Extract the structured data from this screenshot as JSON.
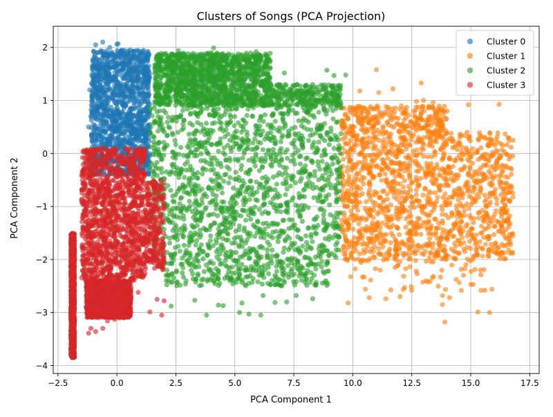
{
  "chart_data": {
    "type": "scatter",
    "title": "Clusters of Songs (PCA Projection)",
    "xlabel": "PCA Component 1",
    "ylabel": "PCA Component 2",
    "xlim": [
      -2.7,
      17.9
    ],
    "ylim": [
      -4.15,
      2.4
    ],
    "xticks": [
      -2.5,
      0.0,
      2.5,
      5.0,
      7.5,
      10.0,
      12.5,
      15.0,
      17.5
    ],
    "xtick_labels": [
      "−2.5",
      "0.0",
      "2.5",
      "5.0",
      "7.5",
      "10.0",
      "12.5",
      "15.0",
      "17.5"
    ],
    "yticks": [
      -4,
      -3,
      -2,
      -1,
      0,
      1,
      2
    ],
    "ytick_labels": [
      "−4",
      "−3",
      "−2",
      "−1",
      "0",
      "1",
      "2"
    ],
    "grid": true,
    "legend_position": "top-right",
    "series": [
      {
        "name": "Cluster 0",
        "color": "#1f77b4",
        "regions": [
          {
            "x": [
              -1.1,
              1.4
            ],
            "y": [
              -0.4,
              1.95
            ],
            "density": "dense"
          }
        ],
        "points": [
          [
            -0.6,
            2.1
          ],
          [
            -0.9,
            2.05
          ],
          [
            0.0,
            2.06
          ],
          [
            0.05,
            2.07
          ],
          [
            -0.3,
            2.0
          ],
          [
            0.3,
            1.95
          ],
          [
            0.7,
            1.93
          ],
          [
            1.1,
            1.92
          ],
          [
            1.3,
            1.9
          ],
          [
            -1.15,
            1.2
          ],
          [
            -1.2,
            0.5
          ],
          [
            -1.25,
            0.0
          ],
          [
            1.3,
            1.6
          ]
        ]
      },
      {
        "name": "Cluster 1",
        "color": "#ff7f0e",
        "regions": [
          {
            "x": [
              9.5,
              16.8
            ],
            "y": [
              -2.0,
              0.4
            ],
            "density": "dense"
          },
          {
            "x": [
              9.5,
              14.0
            ],
            "y": [
              0.4,
              0.9
            ],
            "density": "medium"
          },
          {
            "x": [
              9.6,
              16.0
            ],
            "y": [
              -2.6,
              -2.0
            ],
            "density": "sparse"
          }
        ],
        "points": [
          [
            11.0,
            1.58
          ],
          [
            12.9,
            1.33
          ],
          [
            11.7,
            1.22
          ],
          [
            10.3,
            1.18
          ],
          [
            11.1,
            1.15
          ],
          [
            13.0,
            1.0
          ],
          [
            12.7,
            0.98
          ],
          [
            13.4,
            0.96
          ],
          [
            16.2,
            0.93
          ],
          [
            14.9,
            0.92
          ],
          [
            14.0,
            0.8
          ],
          [
            16.6,
            0.3
          ],
          [
            9.8,
            -2.82
          ],
          [
            10.7,
            -2.72
          ],
          [
            11.4,
            -2.74
          ],
          [
            12.0,
            -2.7
          ],
          [
            12.5,
            -2.58
          ],
          [
            13.8,
            -2.68
          ],
          [
            14.1,
            -2.72
          ],
          [
            13.8,
            -2.85
          ],
          [
            15.6,
            -2.58
          ],
          [
            15.3,
            -2.99
          ],
          [
            15.8,
            -3.0
          ],
          [
            13.9,
            -3.18
          ],
          [
            15.0,
            -2.47
          ],
          [
            15.9,
            -2.56
          ]
        ]
      },
      {
        "name": "Cluster 2",
        "color": "#2ca02c",
        "regions": [
          {
            "x": [
              1.4,
              9.5
            ],
            "y": [
              -2.0,
              0.9
            ],
            "density": "dense"
          },
          {
            "x": [
              1.6,
              6.5
            ],
            "y": [
              0.9,
              1.9
            ],
            "density": "dense"
          },
          {
            "x": [
              6.5,
              9.5
            ],
            "y": [
              0.9,
              1.3
            ],
            "density": "medium"
          },
          {
            "x": [
              2.0,
              9.0
            ],
            "y": [
              -2.5,
              -2.0
            ],
            "density": "medium"
          }
        ],
        "points": [
          [
            4.1,
            1.99
          ],
          [
            4.0,
            1.9
          ],
          [
            5.9,
            1.92
          ],
          [
            2.6,
            1.94
          ],
          [
            3.5,
            1.85
          ],
          [
            5.5,
            1.78
          ],
          [
            6.5,
            1.62
          ],
          [
            7.1,
            1.52
          ],
          [
            8.3,
            1.3
          ],
          [
            8.9,
            1.57
          ],
          [
            9.2,
            1.47
          ],
          [
            9.7,
            1.48
          ],
          [
            3.8,
            -3.05
          ],
          [
            5.2,
            -3.0
          ],
          [
            5.6,
            -3.03
          ],
          [
            6.1,
            -3.05
          ],
          [
            5.3,
            -2.82
          ],
          [
            4.3,
            -2.86
          ],
          [
            4.5,
            -2.87
          ],
          [
            3.3,
            -2.77
          ],
          [
            2.3,
            -2.88
          ],
          [
            6.7,
            -2.81
          ],
          [
            7.2,
            -2.8
          ],
          [
            7.6,
            -2.68
          ],
          [
            8.3,
            -2.74
          ],
          [
            8.9,
            -2.49
          ],
          [
            6.2,
            -2.68
          ]
        ]
      },
      {
        "name": "Cluster 3",
        "color": "#d62728",
        "regions": [
          {
            "x": [
              -1.5,
              1.2
            ],
            "y": [
              -2.4,
              0.1
            ],
            "density": "dense"
          },
          {
            "x": [
              1.2,
              2.0
            ],
            "y": [
              -2.2,
              -0.5
            ],
            "density": "medium"
          },
          {
            "x": [
              -1.3,
              0.6
            ],
            "y": [
              -3.1,
              -2.4
            ],
            "density": "dense"
          },
          {
            "x": [
              -1.95,
              -1.8
            ],
            "y": [
              -3.85,
              -1.5
            ],
            "density": "dense"
          }
        ],
        "points": [
          [
            -1.2,
            -3.39
          ],
          [
            -1.1,
            -3.3
          ],
          [
            -0.9,
            -3.36
          ],
          [
            -0.6,
            -3.3
          ],
          [
            -0.4,
            -3.16
          ],
          [
            -0.1,
            -3.13
          ],
          [
            0.1,
            -2.96
          ],
          [
            0.3,
            -2.88
          ],
          [
            0.9,
            -2.62
          ],
          [
            1.4,
            -2.99
          ],
          [
            1.9,
            -3.05
          ],
          [
            2.0,
            -2.78
          ],
          [
            1.7,
            -2.75
          ]
        ]
      }
    ]
  }
}
